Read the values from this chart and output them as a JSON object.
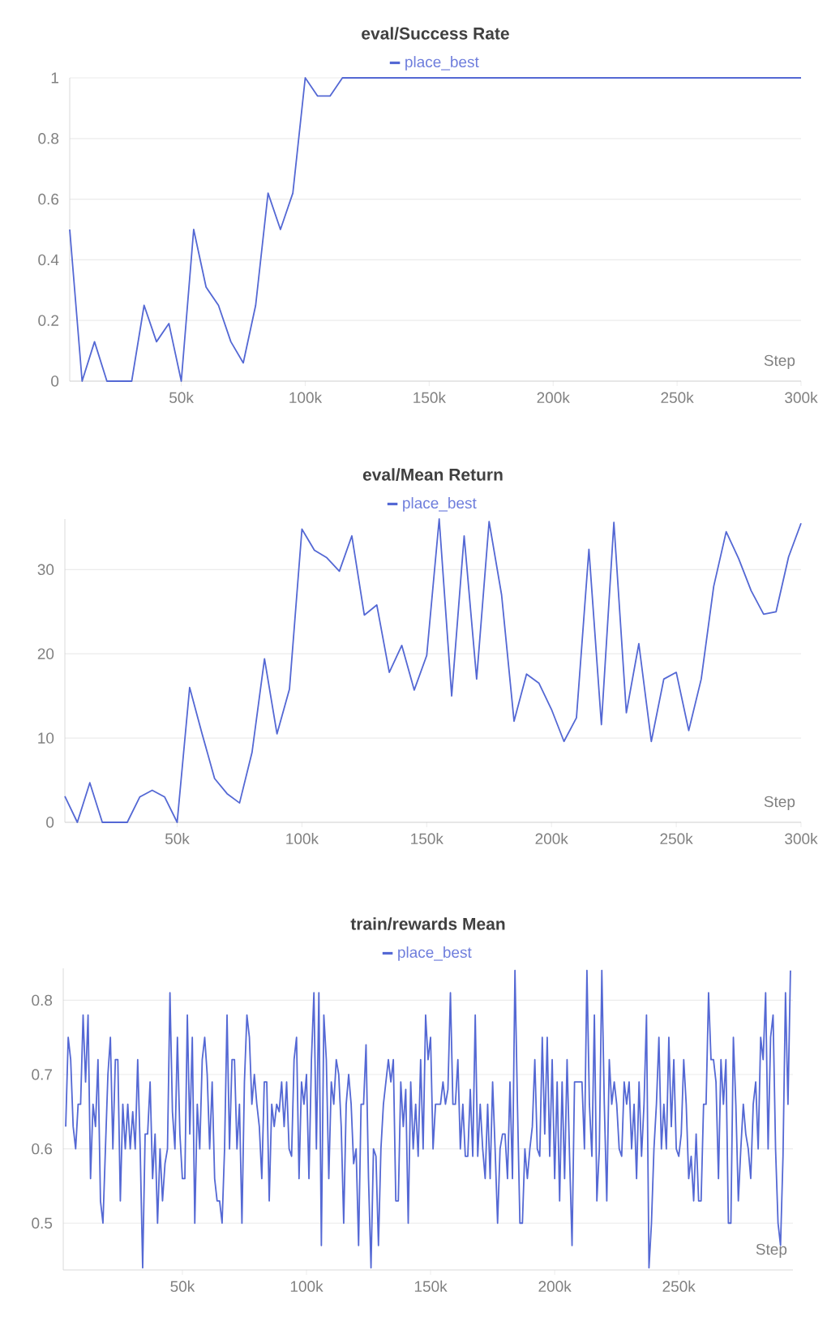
{
  "chart_data": [
    {
      "type": "line",
      "title": "eval/Success Rate",
      "xlabel": "Step",
      "xlim": [
        5000,
        300000
      ],
      "ylim": [
        0,
        1
      ],
      "xticks": [
        {
          "value": 50000,
          "label": "50k"
        },
        {
          "value": 100000,
          "label": "100k"
        },
        {
          "value": 150000,
          "label": "150k"
        },
        {
          "value": 200000,
          "label": "200k"
        },
        {
          "value": 250000,
          "label": "250k"
        },
        {
          "value": 300000,
          "label": "300k"
        }
      ],
      "yticks": [
        0,
        0.2,
        0.4,
        0.6,
        0.8,
        1
      ],
      "grid": "y",
      "legend": "top",
      "series": [
        {
          "name": "place_best",
          "color": "#5468d4",
          "x": [
            5000,
            10000,
            15000,
            20000,
            25000,
            30000,
            35000,
            40000,
            45000,
            50000,
            55000,
            60000,
            65000,
            70000,
            75000,
            80000,
            85000,
            90000,
            95000,
            100000,
            105000,
            110000,
            115000,
            300000
          ],
          "values": [
            0.5,
            0,
            0.13,
            0,
            0,
            0,
            0.25,
            0.13,
            0.19,
            0,
            0.5,
            0.31,
            0.25,
            0.13,
            0.06,
            0.25,
            0.62,
            0.5,
            0.62,
            1,
            0.94,
            0.94,
            1,
            1
          ]
        }
      ]
    },
    {
      "type": "line",
      "title": "eval/Mean Return",
      "xlabel": "Step",
      "xlim": [
        5000,
        300000
      ],
      "ylim": [
        0,
        36
      ],
      "xticks": [
        {
          "value": 50000,
          "label": "50k"
        },
        {
          "value": 100000,
          "label": "100k"
        },
        {
          "value": 150000,
          "label": "150k"
        },
        {
          "value": 200000,
          "label": "200k"
        },
        {
          "value": 250000,
          "label": "250k"
        },
        {
          "value": 300000,
          "label": "300k"
        }
      ],
      "yticks": [
        0,
        10,
        20,
        30
      ],
      "grid": "y",
      "legend": "top",
      "series": [
        {
          "name": "place_best",
          "color": "#5468d4",
          "x": [
            5000,
            10000,
            15000,
            20000,
            25000,
            30000,
            35000,
            40000,
            45000,
            50000,
            55000,
            60000,
            65000,
            70000,
            75000,
            80000,
            85000,
            90000,
            95000,
            100000,
            105000,
            110000,
            115000,
            120000,
            125000,
            130000,
            135000,
            140000,
            145000,
            150000,
            155000,
            160000,
            165000,
            170000,
            175000,
            180000,
            185000,
            190000,
            195000,
            200000,
            205000,
            210000,
            215000,
            220000,
            225000,
            230000,
            235000,
            240000,
            245000,
            250000,
            255000,
            260000,
            265000,
            270000,
            275000,
            280000,
            285000,
            290000,
            295000,
            300000
          ],
          "values": [
            3.1,
            0,
            4.7,
            0,
            0,
            0,
            3,
            3.8,
            3,
            0,
            16,
            10.5,
            5.2,
            3.4,
            2.3,
            8.3,
            19.4,
            10.5,
            15.8,
            34.8,
            32.3,
            31.4,
            29.8,
            34,
            24.6,
            25.8,
            17.8,
            21,
            15.7,
            19.8,
            36,
            15,
            34,
            17,
            35.7,
            27,
            12,
            17.6,
            16.5,
            13.4,
            9.6,
            12.4,
            32.4,
            11.6,
            35.6,
            13,
            21.2,
            9.6,
            17,
            17.8,
            10.9,
            17,
            28,
            34.5,
            31.3,
            27.5,
            24.7,
            25,
            31.5,
            35.5
          ]
        }
      ]
    },
    {
      "type": "line",
      "title": "train/rewards Mean",
      "xlabel": "Step",
      "xlim": [
        2000,
        296000
      ],
      "ylim": [
        0.437,
        0.843
      ],
      "xticks": [
        {
          "value": 50000,
          "label": "50k"
        },
        {
          "value": 100000,
          "label": "100k"
        },
        {
          "value": 150000,
          "label": "150k"
        },
        {
          "value": 200000,
          "label": "200k"
        },
        {
          "value": 250000,
          "label": "250k"
        }
      ],
      "yticks": [
        0.5,
        0.6,
        0.7,
        0.8
      ],
      "grid": "y",
      "legend": "top",
      "series": [
        {
          "name": "place_best",
          "color": "#5468d4",
          "x": [
            3000,
            4000,
            5000,
            6000,
            7000,
            8000,
            9000,
            10000,
            11000,
            12000,
            13000,
            14000,
            15000,
            16000,
            17000,
            18000,
            19000,
            20000,
            21000,
            22000,
            23000,
            24000,
            25000,
            26000,
            27000,
            28000,
            29000,
            30000,
            31000,
            32000,
            33000,
            34000,
            35000,
            36000,
            37000,
            38000,
            39000,
            40000,
            41000,
            42000,
            43000,
            44000,
            45000,
            46000,
            47000,
            48000,
            49000,
            50000,
            51000,
            52000,
            53000,
            54000,
            55000,
            56000,
            57000,
            58000,
            59000,
            60000,
            61000,
            62000,
            63000,
            64000,
            65000,
            66000,
            67000,
            68000,
            69000,
            70000,
            71000,
            72000,
            73000,
            74000,
            75000,
            76000,
            77000,
            78000,
            79000,
            80000,
            81000,
            82000,
            83000,
            84000,
            85000,
            86000,
            87000,
            88000,
            89000,
            90000,
            91000,
            92000,
            93000,
            94000,
            95000,
            96000,
            97000,
            98000,
            99000,
            100000,
            101000,
            102000,
            103000,
            104000,
            105000,
            106000,
            107000,
            108000,
            109000,
            110000,
            111000,
            112000,
            113000,
            114000,
            115000,
            116000,
            117000,
            118000,
            119000,
            120000,
            121000,
            122000,
            123000,
            124000,
            125000,
            126000,
            127000,
            128000,
            129000,
            130000,
            131000,
            132000,
            133000,
            134000,
            135000,
            136000,
            137000,
            138000,
            139000,
            140000,
            141000,
            142000,
            143000,
            144000,
            145000,
            146000,
            147000,
            148000,
            149000,
            150000,
            151000,
            152000,
            153000,
            154000,
            155000,
            156000,
            157000,
            158000,
            159000,
            160000,
            161000,
            162000,
            163000,
            164000,
            165000,
            166000,
            167000,
            168000,
            169000,
            170000,
            171000,
            172000,
            173000,
            174000,
            175000,
            176000,
            177000,
            178000,
            179000,
            180000,
            181000,
            182000,
            183000,
            184000,
            185000,
            186000,
            187000,
            188000,
            189000,
            190000,
            191000,
            192000,
            193000,
            194000,
            195000,
            196000,
            197000,
            198000,
            199000,
            200000,
            201000,
            202000,
            203000,
            204000,
            205000,
            206000,
            207000,
            208000,
            209000,
            210000,
            211000,
            212000,
            213000,
            214000,
            215000,
            216000,
            217000,
            218000,
            219000,
            220000,
            221000,
            222000,
            223000,
            224000,
            225000,
            226000,
            227000,
            228000,
            229000,
            230000,
            231000,
            232000,
            233000,
            234000,
            235000,
            236000,
            237000,
            238000,
            239000,
            240000,
            241000,
            242000,
            243000,
            244000,
            245000,
            246000,
            247000,
            248000,
            249000,
            250000,
            251000,
            252000,
            253000,
            254000,
            255000,
            256000,
            257000,
            258000,
            259000,
            260000,
            261000,
            262000,
            263000,
            264000,
            265000,
            266000,
            267000,
            268000,
            269000,
            270000,
            271000,
            272000,
            273000,
            274000,
            275000,
            276000,
            277000,
            278000,
            279000,
            280000,
            281000,
            282000,
            283000,
            284000,
            285000,
            286000,
            287000,
            288000,
            289000,
            290000,
            291000,
            292000,
            293000,
            294000,
            295000
          ],
          "values": [
            0.63,
            0.75,
            0.72,
            0.63,
            0.6,
            0.66,
            0.66,
            0.78,
            0.69,
            0.78,
            0.56,
            0.66,
            0.63,
            0.72,
            0.53,
            0.5,
            0.6,
            0.7,
            0.75,
            0.6,
            0.72,
            0.72,
            0.53,
            0.66,
            0.6,
            0.66,
            0.6,
            0.65,
            0.6,
            0.72,
            0.6,
            0.44,
            0.62,
            0.62,
            0.69,
            0.56,
            0.62,
            0.5,
            0.6,
            0.53,
            0.58,
            0.6,
            0.81,
            0.65,
            0.6,
            0.75,
            0.62,
            0.56,
            0.56,
            0.78,
            0.62,
            0.75,
            0.5,
            0.66,
            0.6,
            0.72,
            0.75,
            0.7,
            0.6,
            0.69,
            0.56,
            0.53,
            0.53,
            0.5,
            0.6,
            0.78,
            0.6,
            0.72,
            0.72,
            0.6,
            0.66,
            0.5,
            0.69,
            0.78,
            0.75,
            0.66,
            0.7,
            0.66,
            0.63,
            0.56,
            0.69,
            0.69,
            0.53,
            0.66,
            0.63,
            0.66,
            0.65,
            0.69,
            0.63,
            0.69,
            0.6,
            0.59,
            0.72,
            0.75,
            0.56,
            0.69,
            0.66,
            0.7,
            0.56,
            0.72,
            0.81,
            0.6,
            0.81,
            0.47,
            0.78,
            0.72,
            0.56,
            0.69,
            0.66,
            0.72,
            0.7,
            0.63,
            0.5,
            0.66,
            0.7,
            0.66,
            0.58,
            0.6,
            0.47,
            0.66,
            0.66,
            0.74,
            0.56,
            0.44,
            0.6,
            0.59,
            0.47,
            0.6,
            0.66,
            0.69,
            0.72,
            0.69,
            0.72,
            0.53,
            0.53,
            0.69,
            0.63,
            0.68,
            0.5,
            0.69,
            0.6,
            0.66,
            0.59,
            0.72,
            0.6,
            0.78,
            0.72,
            0.75,
            0.6,
            0.66,
            0.66,
            0.66,
            0.69,
            0.66,
            0.68,
            0.81,
            0.66,
            0.66,
            0.72,
            0.6,
            0.66,
            0.59,
            0.59,
            0.68,
            0.59,
            0.78,
            0.59,
            0.66,
            0.6,
            0.56,
            0.66,
            0.56,
            0.69,
            0.6,
            0.5,
            0.6,
            0.62,
            0.62,
            0.56,
            0.69,
            0.56,
            0.84,
            0.66,
            0.5,
            0.5,
            0.6,
            0.56,
            0.6,
            0.63,
            0.72,
            0.6,
            0.59,
            0.75,
            0.62,
            0.75,
            0.59,
            0.72,
            0.56,
            0.69,
            0.53,
            0.69,
            0.56,
            0.72,
            0.59,
            0.47,
            0.69,
            0.69,
            0.69,
            0.69,
            0.6,
            0.84,
            0.66,
            0.59,
            0.78,
            0.53,
            0.6,
            0.84,
            0.66,
            0.53,
            0.72,
            0.66,
            0.69,
            0.66,
            0.6,
            0.59,
            0.69,
            0.66,
            0.69,
            0.6,
            0.66,
            0.56,
            0.69,
            0.59,
            0.66,
            0.78,
            0.44,
            0.5,
            0.6,
            0.66,
            0.75,
            0.6,
            0.66,
            0.6,
            0.75,
            0.63,
            0.72,
            0.6,
            0.59,
            0.62,
            0.72,
            0.66,
            0.56,
            0.59,
            0.53,
            0.62,
            0.53,
            0.53,
            0.66,
            0.66,
            0.81,
            0.72,
            0.72,
            0.69,
            0.56,
            0.72,
            0.66,
            0.72,
            0.5,
            0.5,
            0.75,
            0.66,
            0.53,
            0.6,
            0.66,
            0.62,
            0.6,
            0.56,
            0.66,
            0.69,
            0.6,
            0.75,
            0.72,
            0.81,
            0.6,
            0.75,
            0.78,
            0.6,
            0.5,
            0.47,
            0.59,
            0.81,
            0.66,
            0.84
          ]
        }
      ]
    }
  ]
}
